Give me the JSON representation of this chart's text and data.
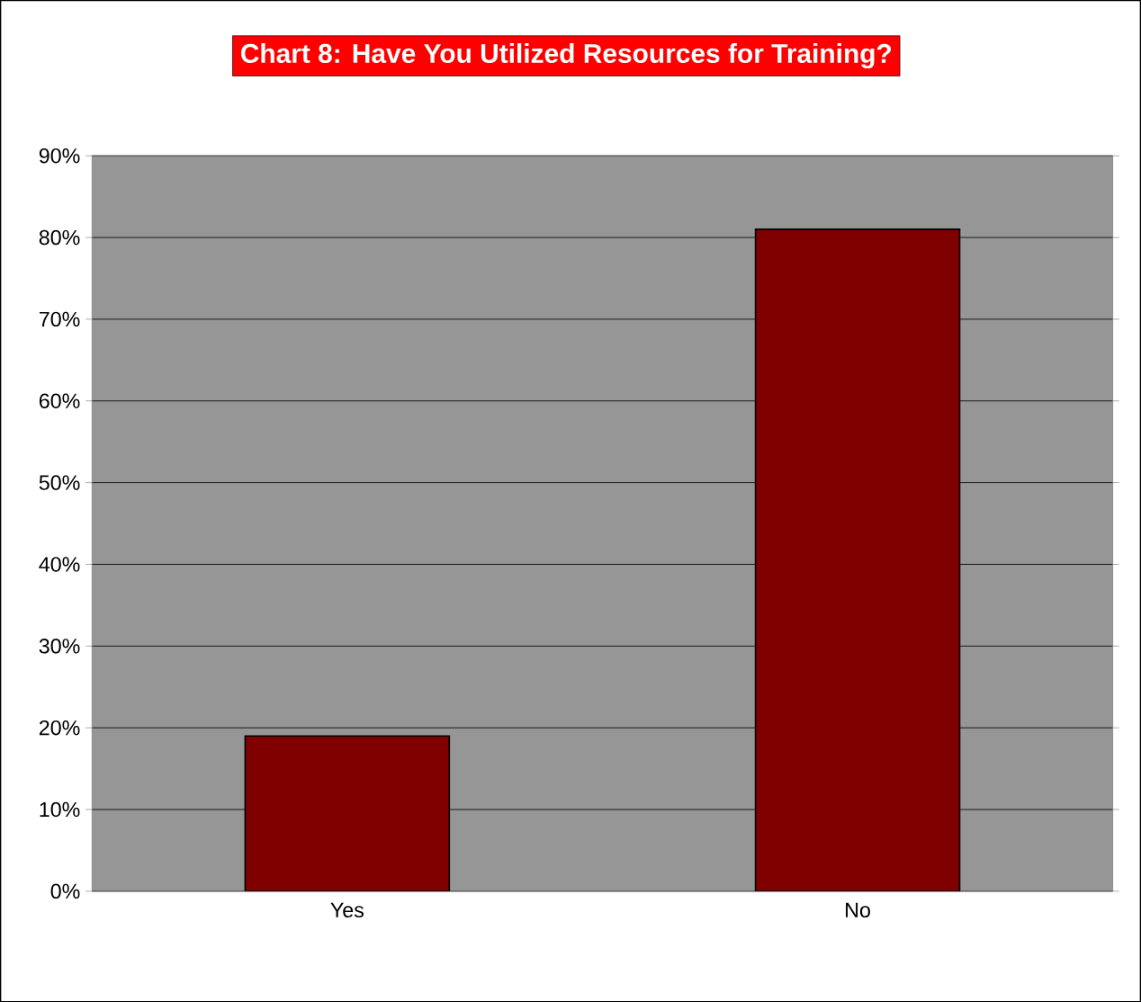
{
  "chart_data": {
    "type": "bar",
    "title": "Chart 8:  Have You Utilized Resources for Training?",
    "categories": [
      "Yes",
      "No"
    ],
    "values": [
      19,
      81
    ],
    "color": "#800000",
    "ylim": [
      0,
      90
    ],
    "yticks": [
      {
        "value": 0,
        "label": "0%"
      },
      {
        "value": 10,
        "label": "10%"
      },
      {
        "value": 20,
        "label": "20%"
      },
      {
        "value": 30,
        "label": "30%"
      },
      {
        "value": 40,
        "label": "40%"
      },
      {
        "value": 50,
        "label": "50%"
      },
      {
        "value": 60,
        "label": "60%"
      },
      {
        "value": 70,
        "label": "70%"
      },
      {
        "value": 80,
        "label": "80%"
      },
      {
        "value": 90,
        "label": "90%"
      }
    ],
    "grid": "y"
  }
}
